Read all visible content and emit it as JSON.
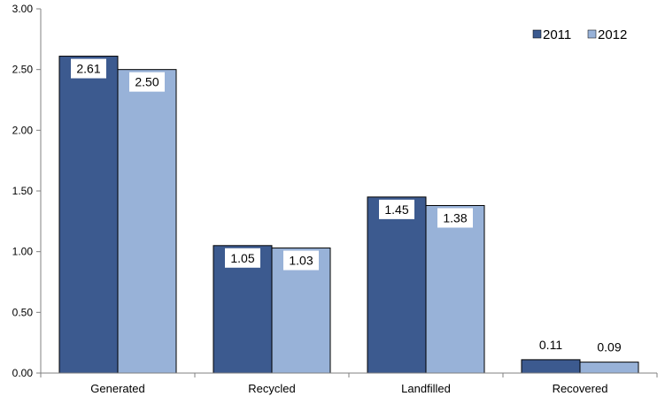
{
  "chart_data": {
    "type": "bar",
    "title": "",
    "xlabel": "",
    "ylabel": "",
    "ylim": [
      0,
      3
    ],
    "yticks": [
      "0.00",
      "0.50",
      "1.00",
      "1.50",
      "2.00",
      "2.50",
      "3.00"
    ],
    "categories": [
      "Generated",
      "Recycled",
      "Landfilled",
      "Recovered"
    ],
    "series": [
      {
        "name": "2011",
        "color": "#3C5A8F",
        "values": [
          2.61,
          1.05,
          1.45,
          0.11
        ],
        "labels": [
          "2.61",
          "1.05",
          "1.45",
          "0.11"
        ]
      },
      {
        "name": "2012",
        "color": "#98B2D8",
        "values": [
          2.5,
          1.03,
          1.38,
          0.09
        ],
        "labels": [
          "2.50",
          "1.03",
          "1.38",
          "0.09"
        ]
      }
    ],
    "legend_position": "top-right",
    "grid": false
  }
}
